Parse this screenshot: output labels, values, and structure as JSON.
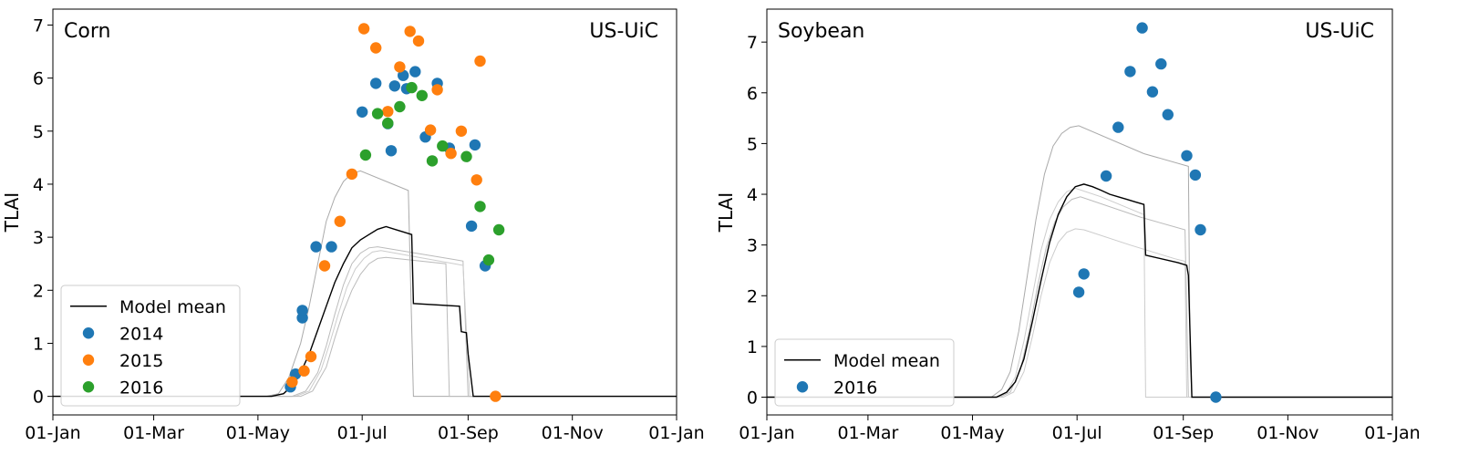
{
  "chart_data": [
    {
      "type": "scatter",
      "panel_label": "Corn",
      "site_label": "US-UiC",
      "ylabel": "TLAI",
      "xlabel": "",
      "x_ticks": [
        "01-Jan",
        "01-Mar",
        "01-May",
        "01-Jul",
        "01-Sep",
        "01-Nov",
        "01-Jan"
      ],
      "x_tick_days": [
        0,
        59,
        120,
        181,
        243,
        304,
        365
      ],
      "y_ticks": [
        0,
        1,
        2,
        3,
        4,
        5,
        6,
        7
      ],
      "xlim_days": [
        0,
        365
      ],
      "ylim": [
        -0.35,
        7.3
      ],
      "legend_position": "lower-left",
      "legend": [
        {
          "label": "Model mean",
          "kind": "line",
          "color": "#000000"
        },
        {
          "label": "2014",
          "kind": "marker",
          "color": "#1f77b4"
        },
        {
          "label": "2015",
          "kind": "marker",
          "color": "#ff7f0e"
        },
        {
          "label": "2016",
          "kind": "marker",
          "color": "#2ca02c"
        }
      ],
      "model_mean": [
        [
          0,
          0
        ],
        [
          128,
          0
        ],
        [
          135,
          0.05
        ],
        [
          140,
          0.2
        ],
        [
          145,
          0.45
        ],
        [
          150,
          0.8
        ],
        [
          155,
          1.25
        ],
        [
          160,
          1.7
        ],
        [
          165,
          2.15
        ],
        [
          170,
          2.5
        ],
        [
          175,
          2.8
        ],
        [
          180,
          2.95
        ],
        [
          185,
          3.05
        ],
        [
          190,
          3.15
        ],
        [
          195,
          3.2
        ],
        [
          200,
          3.15
        ],
        [
          205,
          3.1
        ],
        [
          210,
          3.05
        ],
        [
          211,
          1.75
        ],
        [
          238,
          1.7
        ],
        [
          239,
          1.22
        ],
        [
          242,
          1.2
        ],
        [
          243,
          0.8
        ],
        [
          246,
          0
        ],
        [
          365,
          0
        ]
      ],
      "model_runs": [
        {
          "color": "#aaaaaa",
          "points": [
            [
              0,
              0
            ],
            [
              125,
              0
            ],
            [
              132,
              0.05
            ],
            [
              138,
              0.35
            ],
            [
              145,
              1.0
            ],
            [
              150,
              1.7
            ],
            [
              155,
              2.5
            ],
            [
              160,
              3.3
            ],
            [
              165,
              3.75
            ],
            [
              170,
              4.05
            ],
            [
              175,
              4.2
            ],
            [
              180,
              4.25
            ],
            [
              208,
              3.88
            ],
            [
              211,
              0
            ],
            [
              365,
              0
            ]
          ]
        },
        {
          "color": "#bbbbbb",
          "points": [
            [
              0,
              0
            ],
            [
              140,
              0
            ],
            [
              148,
              0.1
            ],
            [
              155,
              0.45
            ],
            [
              160,
              0.95
            ],
            [
              165,
              1.55
            ],
            [
              170,
              2.1
            ],
            [
              175,
              2.5
            ],
            [
              180,
              2.7
            ],
            [
              185,
              2.8
            ],
            [
              190,
              2.82
            ],
            [
              235,
              2.58
            ],
            [
              240,
              2.55
            ],
            [
              243,
              0
            ],
            [
              365,
              0
            ]
          ]
        },
        {
          "color": "#cccccc",
          "points": [
            [
              0,
              0
            ],
            [
              142,
              0
            ],
            [
              150,
              0.1
            ],
            [
              157,
              0.5
            ],
            [
              162,
              1.0
            ],
            [
              167,
              1.55
            ],
            [
              172,
              2.05
            ],
            [
              177,
              2.4
            ],
            [
              182,
              2.6
            ],
            [
              187,
              2.72
            ],
            [
              192,
              2.75
            ],
            [
              235,
              2.5
            ],
            [
              240,
              2.47
            ],
            [
              244,
              0
            ],
            [
              365,
              0
            ]
          ]
        },
        {
          "color": "#bbbbbb",
          "points": [
            [
              0,
              0
            ],
            [
              145,
              0
            ],
            [
              152,
              0.1
            ],
            [
              160,
              0.55
            ],
            [
              165,
              1.1
            ],
            [
              170,
              1.6
            ],
            [
              175,
              2.0
            ],
            [
              180,
              2.3
            ],
            [
              185,
              2.5
            ],
            [
              190,
              2.6
            ],
            [
              195,
              2.62
            ],
            [
              230,
              2.5
            ],
            [
              232,
              0
            ],
            [
              365,
              0
            ]
          ]
        }
      ],
      "series": [
        {
          "name": "2014",
          "color": "#1f77b4",
          "x": [
            139,
            142,
            146,
            146,
            154,
            163,
            181,
            189,
            196,
            198,
            200,
            205,
            207,
            212,
            218,
            225,
            232,
            245,
            247,
            253
          ],
          "y": [
            0.18,
            0.42,
            1.48,
            1.62,
            2.82,
            2.82,
            5.36,
            5.9,
            5.14,
            4.63,
            5.85,
            6.05,
            5.8,
            6.12,
            4.89,
            5.9,
            4.68,
            3.21,
            4.74,
            2.46
          ]
        },
        {
          "name": "2015",
          "color": "#ff7f0e",
          "x": [
            140,
            147,
            151,
            159,
            168,
            175,
            182,
            189,
            196,
            203,
            209,
            214,
            221,
            225,
            233,
            239,
            248,
            250,
            259
          ],
          "y": [
            0.27,
            0.48,
            0.75,
            2.46,
            3.3,
            4.19,
            6.93,
            6.57,
            5.37,
            6.21,
            6.88,
            6.7,
            5.02,
            5.78,
            4.58,
            5.0,
            4.08,
            6.32,
            0.0
          ]
        },
        {
          "name": "2016",
          "color": "#2ca02c",
          "x": [
            183,
            190,
            196,
            203,
            210,
            216,
            222,
            228,
            242,
            250,
            255,
            261
          ],
          "y": [
            4.55,
            5.33,
            5.15,
            5.46,
            5.82,
            5.67,
            4.44,
            4.72,
            4.52,
            3.58,
            2.57,
            3.14
          ]
        }
      ]
    },
    {
      "type": "scatter",
      "panel_label": "Soybean",
      "site_label": "US-UiC",
      "ylabel": "TLAI",
      "xlabel": "",
      "x_ticks": [
        "01-Jan",
        "01-Mar",
        "01-May",
        "01-Jul",
        "01-Sep",
        "01-Nov",
        "01-Jan"
      ],
      "x_tick_days": [
        0,
        59,
        120,
        181,
        243,
        304,
        365
      ],
      "y_ticks": [
        0,
        1,
        2,
        3,
        4,
        5,
        6,
        7
      ],
      "xlim_days": [
        0,
        365
      ],
      "ylim": [
        -0.35,
        7.65
      ],
      "legend_position": "lower-left",
      "legend": [
        {
          "label": "Model mean",
          "kind": "line",
          "color": "#000000"
        },
        {
          "label": "2016",
          "kind": "marker",
          "color": "#1f77b4"
        }
      ],
      "model_mean": [
        [
          0,
          0
        ],
        [
          134,
          0
        ],
        [
          140,
          0.1
        ],
        [
          145,
          0.3
        ],
        [
          150,
          0.75
        ],
        [
          155,
          1.5
        ],
        [
          160,
          2.3
        ],
        [
          165,
          3.05
        ],
        [
          170,
          3.6
        ],
        [
          175,
          3.95
        ],
        [
          180,
          4.15
        ],
        [
          185,
          4.2
        ],
        [
          190,
          4.15
        ],
        [
          195,
          4.08
        ],
        [
          200,
          4.0
        ],
        [
          205,
          3.95
        ],
        [
          210,
          3.9
        ],
        [
          215,
          3.85
        ],
        [
          220,
          3.8
        ],
        [
          221,
          2.8
        ],
        [
          240,
          2.65
        ],
        [
          245,
          2.6
        ],
        [
          246,
          2.4
        ],
        [
          247,
          1.2
        ],
        [
          248,
          0
        ],
        [
          365,
          0
        ]
      ],
      "model_runs": [
        {
          "color": "#aaaaaa",
          "points": [
            [
              0,
              0
            ],
            [
              131,
              0
            ],
            [
              137,
              0.15
            ],
            [
              142,
              0.5
            ],
            [
              147,
              1.3
            ],
            [
              152,
              2.4
            ],
            [
              157,
              3.5
            ],
            [
              162,
              4.4
            ],
            [
              167,
              4.95
            ],
            [
              172,
              5.2
            ],
            [
              177,
              5.32
            ],
            [
              182,
              5.35
            ],
            [
              220,
              4.8
            ],
            [
              246,
              4.55
            ],
            [
              247,
              0.8
            ],
            [
              248,
              0
            ],
            [
              365,
              0
            ]
          ]
        },
        {
          "color": "#bbbbbb",
          "points": [
            [
              0,
              0
            ],
            [
              136,
              0
            ],
            [
              142,
              0.1
            ],
            [
              148,
              0.55
            ],
            [
              153,
              1.3
            ],
            [
              158,
              2.2
            ],
            [
              163,
              2.95
            ],
            [
              168,
              3.45
            ],
            [
              173,
              3.75
            ],
            [
              178,
              3.9
            ],
            [
              183,
              3.95
            ],
            [
              218,
              3.55
            ],
            [
              244,
              3.3
            ],
            [
              246,
              0
            ],
            [
              365,
              0
            ]
          ]
        },
        {
          "color": "#cccccc",
          "points": [
            [
              0,
              0
            ],
            [
              138,
              0
            ],
            [
              144,
              0.1
            ],
            [
              150,
              0.5
            ],
            [
              155,
              1.2
            ],
            [
              160,
              2.0
            ],
            [
              165,
              2.65
            ],
            [
              170,
              3.05
            ],
            [
              175,
              3.25
            ],
            [
              180,
              3.32
            ],
            [
              185,
              3.3
            ],
            [
              212,
              3.0
            ],
            [
              238,
              2.73
            ],
            [
              244,
              2.68
            ],
            [
              245,
              0
            ],
            [
              365,
              0
            ]
          ]
        },
        {
          "color": "#cccccc",
          "points": [
            [
              0,
              0
            ],
            [
              135,
              0
            ],
            [
              140,
              0.1
            ],
            [
              145,
              0.4
            ],
            [
              150,
              1.1
            ],
            [
              155,
              2.0
            ],
            [
              160,
              2.9
            ],
            [
              165,
              3.5
            ],
            [
              170,
              3.85
            ],
            [
              175,
              4.05
            ],
            [
              180,
              4.12
            ],
            [
              195,
              3.95
            ],
            [
              220,
              3.6
            ],
            [
              221,
              0
            ],
            [
              365,
              0
            ]
          ]
        }
      ],
      "series": [
        {
          "name": "2016",
          "color": "#1f77b4",
          "x": [
            182,
            185,
            198,
            205,
            212,
            219,
            225,
            230,
            234,
            245,
            250,
            253,
            262
          ],
          "y": [
            2.07,
            2.43,
            4.36,
            5.32,
            6.42,
            7.28,
            6.02,
            6.57,
            5.57,
            4.76,
            4.38,
            3.3,
            0.0
          ]
        }
      ]
    }
  ]
}
